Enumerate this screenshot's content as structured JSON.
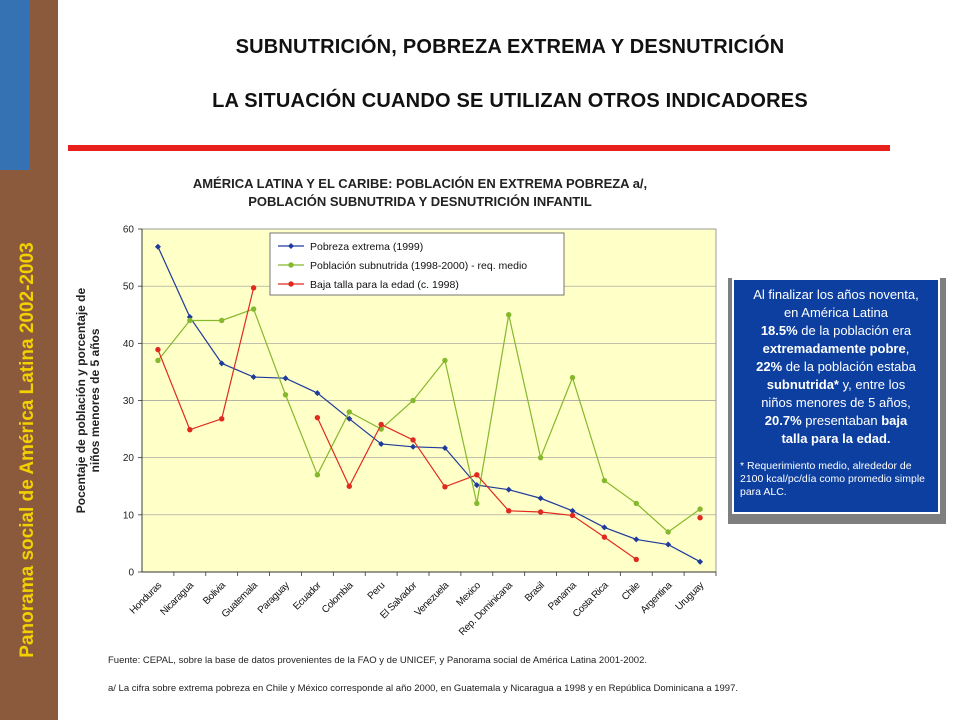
{
  "sidebar": {
    "text": "Panorama social de América Latina 2002-2003"
  },
  "header": {
    "title1": "SUBNUTRICIÓN, POBREZA EXTREMA Y DESNUTRICIÓN",
    "title2": "LA SITUACIÓN CUANDO SE UTILIZAN OTROS INDICADORES"
  },
  "colors": {
    "sidebar": "#8b5a3c",
    "sidebar_accent": "#3572b4",
    "sidebar_text": "#f3d000",
    "rule": "#e8201c",
    "plot_bg": "#ffffc8",
    "infobox": "#0d3fa0"
  },
  "chart_data": {
    "type": "line",
    "title_line1": "AMÉRICA LATINA Y EL CARIBE: POBLACIÓN EN EXTREMA POBREZA a/,",
    "title_line2": "POBLACIÓN SUBNUTRIDA Y DESNUTRICIÓN INFANTIL",
    "ylabel_line1": "Pocentaje de población y porcentaje de",
    "ylabel_line2": "niños menores de 5 años",
    "ylim": [
      0,
      60
    ],
    "yticks": [
      0,
      10,
      20,
      30,
      40,
      50,
      60
    ],
    "grid": true,
    "legend_position": "top-left",
    "categories": [
      "Honduras",
      "Nicaragua",
      "Bolivia",
      "Guatemala",
      "Paraguay",
      "Ecuador",
      "Colombia",
      "Peru",
      "El Salvador",
      "Venezuela",
      "Mexico",
      "Rep. Dominicana",
      "Brasil",
      "Panama",
      "Costa Rica",
      "Chile",
      "Argentina",
      "Uruguay"
    ],
    "series": [
      {
        "name": "Pobreza extrema (1999)",
        "color": "#1f3b9c",
        "values": [
          56.9,
          44.6,
          36.5,
          34.1,
          33.9,
          31.3,
          26.8,
          22.4,
          21.9,
          21.7,
          15.2,
          14.4,
          12.9,
          10.7,
          7.8,
          5.7,
          4.8,
          1.8
        ]
      },
      {
        "name": "Población subnutrida (1998-2000) - req. medio",
        "color": "#86b82e",
        "values": [
          37,
          44,
          44,
          46,
          31,
          17,
          28,
          25,
          30,
          37,
          12,
          45,
          20,
          34,
          16,
          12,
          7,
          11
        ]
      },
      {
        "name": "Baja talla para la edad (c. 1998)",
        "color": "#e02a20",
        "values": [
          38.9,
          24.9,
          26.8,
          49.7,
          null,
          27,
          15,
          25.8,
          23.1,
          14.9,
          17,
          10.7,
          10.5,
          9.9,
          6.1,
          2.2,
          null,
          9.5
        ]
      }
    ]
  },
  "infobox": {
    "l1": "Al finalizar los años noventa,",
    "l2": "en América Latina",
    "l3a": "18.5%",
    "l3b": " de la población era",
    "l4": "extremadamente pobre",
    "l4b": ",",
    "l5a": "22%",
    "l5b": " de la población estaba",
    "l6a": "subnutrida*",
    "l6b": " y, entre los",
    "l7": "niños menores de 5 años,",
    "l8a": "20.7%",
    "l8b": " presentaban ",
    "l8c": "baja",
    "l9": "talla para la edad.",
    "note": "* Requerimiento medio, alrededor de 2100 kcal/pc/día como promedio simple para ALC."
  },
  "footer": {
    "source": "Fuente: CEPAL, sobre la base de datos provenientes de la FAO y de UNICEF, y Panorama social de América Latina 2001-2002.",
    "note": "a/ La cifra sobre extrema pobreza en Chile y México corresponde al año 2000, en Guatemala y Nicaragua a 1998 y en República Dominicana a 1997."
  }
}
